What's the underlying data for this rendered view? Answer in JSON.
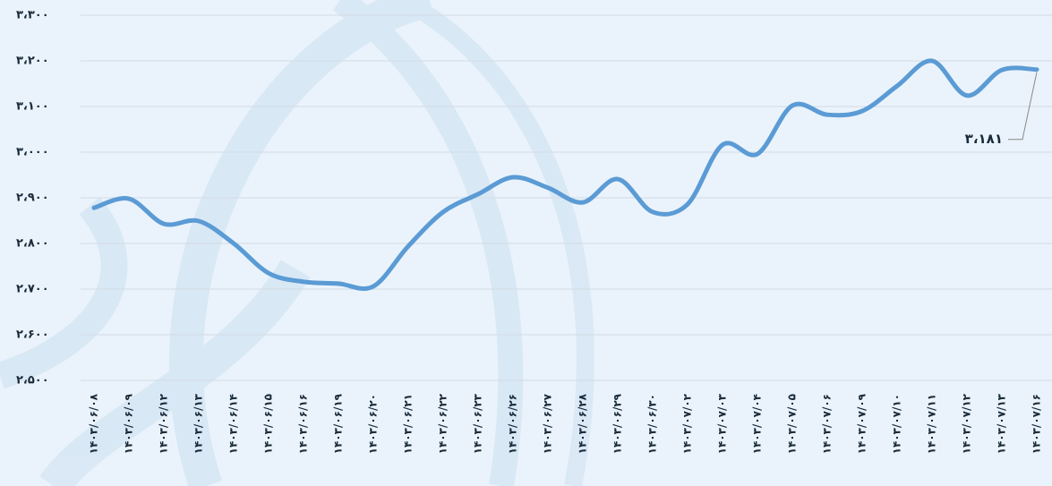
{
  "chart_data": {
    "type": "line",
    "categories": [
      "۱۴۰۳/۰۶/۰۸",
      "۱۴۰۳/۰۶/۰۹",
      "۱۴۰۳/۰۶/۱۲",
      "۱۴۰۳/۰۶/۱۳",
      "۱۴۰۳/۰۶/۱۴",
      "۱۴۰۳/۰۶/۱۵",
      "۱۴۰۳/۰۶/۱۶",
      "۱۴۰۳/۰۶/۱۹",
      "۱۴۰۳/۰۶/۲۰",
      "۱۴۰۳/۰۶/۲۱",
      "۱۴۰۳/۰۶/۲۲",
      "۱۴۰۳/۰۶/۲۳",
      "۱۴۰۳/۰۶/۲۶",
      "۱۴۰۳/۰۶/۲۷",
      "۱۴۰۳/۰۶/۲۸",
      "۱۴۰۳/۰۶/۲۹",
      "۱۴۰۳/۰۶/۳۰",
      "۱۴۰۳/۰۷/۰۲",
      "۱۴۰۳/۰۷/۰۳",
      "۱۴۰۳/۰۷/۰۴",
      "۱۴۰۳/۰۷/۰۵",
      "۱۴۰۳/۰۷/۰۶",
      "۱۴۰۳/۰۷/۰۹",
      "۱۴۰۳/۰۷/۱۰",
      "۱۴۰۳/۰۷/۱۱",
      "۱۴۰۳/۰۷/۱۲",
      "۱۴۰۳/۰۷/۱۳",
      "۱۴۰۳/۰۷/۱۶"
    ],
    "values": [
      2878,
      2898,
      2843,
      2849,
      2800,
      2735,
      2716,
      2712,
      2706,
      2794,
      2869,
      2908,
      2945,
      2922,
      2890,
      2941,
      2869,
      2886,
      3016,
      2996,
      3102,
      3082,
      3090,
      3145,
      3200,
      3124,
      3180,
      3181
    ],
    "value_labels": [
      null,
      null,
      null,
      null,
      null,
      null,
      null,
      null,
      null,
      null,
      null,
      null,
      null,
      null,
      null,
      null,
      null,
      null,
      null,
      null,
      null,
      null,
      null,
      null,
      null,
      null,
      null,
      "۳،۱۸۱"
    ],
    "color": "#5b9bd5",
    "ylim": [
      2500,
      3300
    ],
    "yticks": [
      {
        "value": 2500,
        "label": "۲،۵۰۰"
      },
      {
        "value": 2600,
        "label": "۲،۶۰۰"
      },
      {
        "value": 2700,
        "label": "۲،۷۰۰"
      },
      {
        "value": 2800,
        "label": "۲،۸۰۰"
      },
      {
        "value": 2900,
        "label": "۲،۹۰۰"
      },
      {
        "value": 3000,
        "label": "۳،۰۰۰"
      },
      {
        "value": 3100,
        "label": "۳،۱۰۰"
      },
      {
        "value": 3200,
        "label": "۳،۲۰۰"
      },
      {
        "value": 3300,
        "label": "۳،۳۰۰"
      }
    ],
    "grid": true
  }
}
